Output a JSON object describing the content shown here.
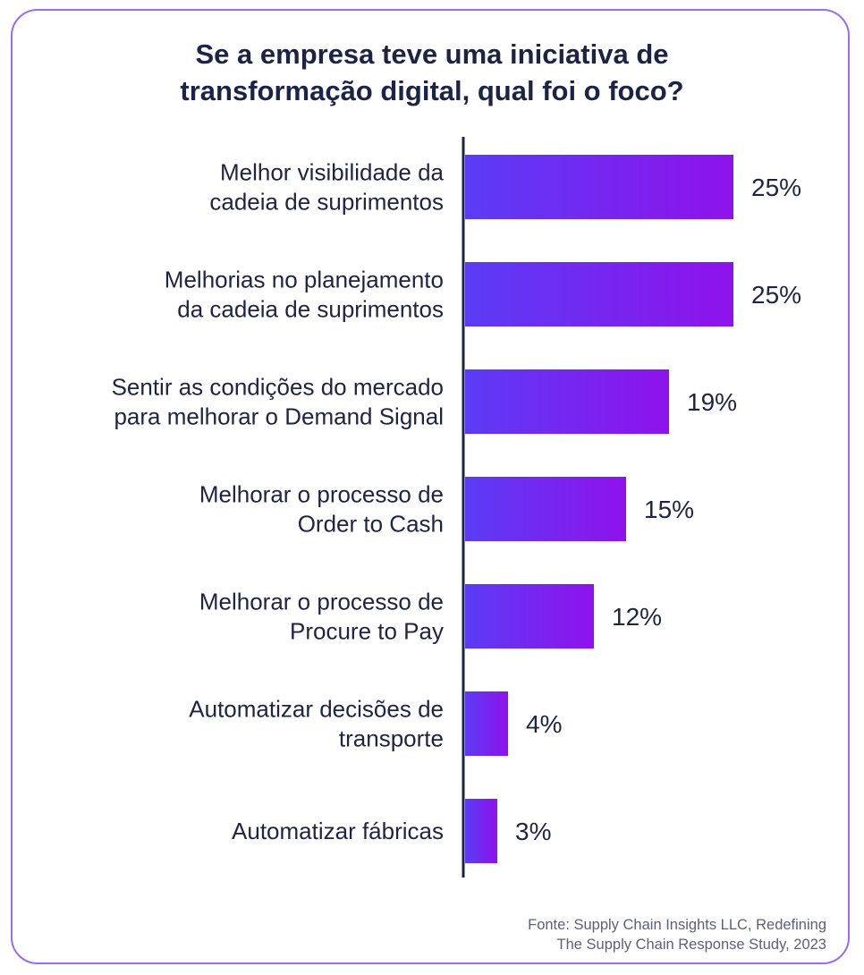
{
  "colors": {
    "frame_border": "#9b6cf0",
    "bar_gradient_start": "#5b3cf5",
    "bar_gradient_end": "#8f12ec",
    "axis_line": "#1c2446",
    "text": "#1f2445",
    "source_text": "#5d6078"
  },
  "title_lines": [
    "Se a empresa teve uma iniciativa de",
    "transformação digital, qual foi o foco?"
  ],
  "source_lines": [
    "Fonte: Supply Chain Insights LLC, Redefining",
    "The Supply Chain Response Study, 2023"
  ],
  "chart_data": {
    "type": "bar",
    "orientation": "horizontal",
    "title": "Se a empresa teve uma iniciativa de transformação digital, qual foi o foco?",
    "categories": [
      [
        "Melhor visibilidade da",
        "cadeia de suprimentos"
      ],
      [
        "Melhorias no planejamento",
        "da cadeia de suprimentos"
      ],
      [
        "Sentir as condições do mercado",
        "para melhorar o Demand Signal"
      ],
      [
        "Melhorar o processo de",
        "Order to Cash"
      ],
      [
        "Melhorar o processo de",
        "Procure to Pay"
      ],
      [
        "Automatizar decisões de",
        "transporte"
      ],
      [
        "Automatizar fábricas"
      ]
    ],
    "values": [
      25,
      25,
      19,
      15,
      12,
      4,
      3
    ],
    "value_labels": [
      "25%",
      "25%",
      "19%",
      "15%",
      "12%",
      "4%",
      "3%"
    ],
    "unit": "%",
    "grid": false,
    "legend": "none"
  }
}
